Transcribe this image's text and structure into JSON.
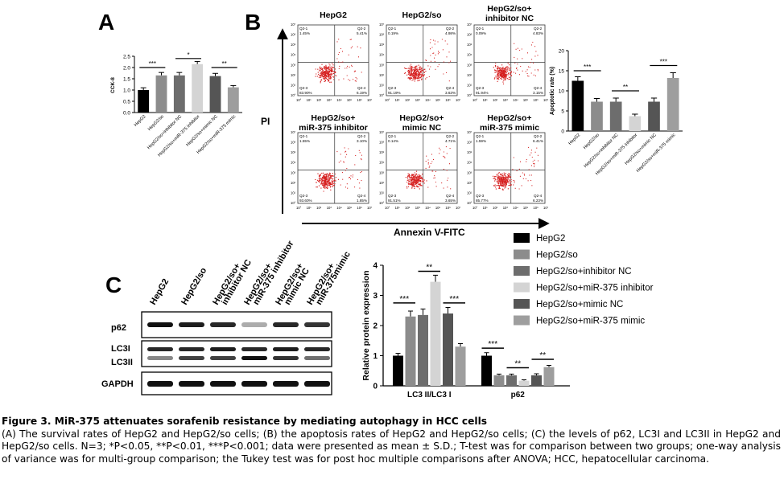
{
  "panelA": {
    "letter": "A",
    "ylabel": "CCK-8",
    "yticks": [
      "0.0",
      "0.5",
      "1.0",
      "1.5",
      "2.0",
      "2.5"
    ],
    "categories": [
      "HepG2",
      "HepG2/so",
      "HepG2/so+inhibitor NC",
      "HepG2/so+miR-375 inhibitor",
      "HepG2/so+mimic NC",
      "HepG2/so+miR-375 mimic"
    ],
    "sig": [
      "***",
      "*",
      "**"
    ]
  },
  "panelB": {
    "letter": "B",
    "yaxis_label": "PI",
    "xaxis_label": "Annexin V-FITC",
    "flow_plots": [
      {
        "title": "HepG2",
        "q1": "Q2-1",
        "q1v": "1.45%",
        "q2": "Q2-2",
        "q2v": "5.41%",
        "q3": "Q2-3",
        "q3v": "83.90%",
        "q4": "Q2-4",
        "q4v": "6.19%"
      },
      {
        "title": "HepG2/so",
        "q1": "Q2-1",
        "q1v": "0.19%",
        "q2": "Q2-2",
        "q2v": "4.98%",
        "q3": "Q2-3",
        "q3v": "91.19%",
        "q4": "Q2-4",
        "q4v": "3.63%"
      },
      {
        "title": "HepG2/so+ inhibitor NC",
        "q1": "Q2-1",
        "q1v": "0.09%",
        "q2": "Q2-2",
        "q2v": "4.83%",
        "q3": "Q2-3",
        "q3v": "91.94%",
        "q4": "Q2-4",
        "q4v": "3.15%"
      },
      {
        "title": "HepG2/so+ miR-375 inhibitor",
        "q1": "Q2-1",
        "q1v": "1.55%",
        "q2": "Q2-2",
        "q2v": "3.10%",
        "q3": "Q2-3",
        "q3v": "93.60%",
        "q4": "Q2-4",
        "q4v": "1.85%"
      },
      {
        "title": "HepG2/so+ mimic NC",
        "q1": "Q2-1",
        "q1v": "0.14%",
        "q2": "Q2-2",
        "q2v": "4.71%",
        "q3": "Q2-3",
        "q3v": "91.51%",
        "q4": "Q2-4",
        "q4v": "3.65%"
      },
      {
        "title": "HepG2/so+ miR-375 mimic",
        "q1": "Q2-1",
        "q1v": "1.59%",
        "q2": "Q2-2",
        "q2v": "6.41%",
        "q3": "Q2-3",
        "q3v": "85.77%",
        "q4": "Q2-4",
        "q4v": "6.23%"
      }
    ],
    "tick_labels": [
      "10°",
      "10¹",
      "10²",
      "10³",
      "10⁴",
      "10⁵",
      "10⁶",
      "10⁷"
    ],
    "bar_ylabel": "Apoptotic rate (%)",
    "bar_yticks": [
      "0",
      "5",
      "10",
      "15",
      "20"
    ],
    "bar_categories": [
      "HepG2",
      "HepG2/so",
      "HepG2/so+inhibitor NC",
      "HepG2/so+miR-375 inhibitor",
      "HepG2/so+mimic NC",
      "HepG2/so+miR-375 mimic"
    ],
    "sig": [
      "***",
      "**",
      "***"
    ]
  },
  "panelC": {
    "letter": "C",
    "lanes": [
      "HepG2",
      "HepG2/so",
      "HepG2/so+ inhibitor NC",
      "HepG2/so+ miR-375 inhibitor",
      "HepG2/so+ mimic NC",
      "HepG2/so+ miR-375mimic"
    ],
    "blot_labels": [
      "p62",
      "LC3I",
      "LC3II",
      "GAPDH"
    ],
    "ylabel": "Relative protein expression",
    "yticks": [
      "0",
      "1",
      "2",
      "3",
      "4"
    ],
    "groups": [
      "LC3 II/LC3 I",
      "p62"
    ],
    "legend": [
      "HepG2",
      "HepG2/so",
      "HepG2/so+inhibitor NC",
      "HepG2/so+miR-375 inhibitor",
      "HepG2/so+mimic NC",
      "HepG2/so+miR-375 mimic"
    ],
    "sig_lc3": [
      "***",
      "**",
      "***"
    ],
    "sig_p62": [
      "***",
      "**",
      "**"
    ]
  },
  "colors": {
    "HepG2": "#000000",
    "HepG2/so": "#8c8c8c",
    "HepG2/so+inhibitor NC": "#6d6d6d",
    "HepG2/so+miR-375 inhibitor": "#d4d4d4",
    "HepG2/so+mimic NC": "#555555",
    "HepG2/so+miR-375 mimic": "#9e9e9e",
    "flow_dots": "#d62020"
  },
  "chart_data": [
    {
      "type": "bar",
      "panel": "A",
      "categories": [
        "HepG2",
        "HepG2/so",
        "HepG2/so+inhibitor NC",
        "HepG2/so+miR-375 inhibitor",
        "HepG2/so+mimic NC",
        "HepG2/so+miR-375 mimic"
      ],
      "values": [
        1.0,
        1.65,
        1.65,
        2.15,
        1.62,
        1.12
      ],
      "errors": [
        0.1,
        0.13,
        0.13,
        0.12,
        0.12,
        0.08
      ],
      "ylabel": "CCK-8",
      "ylim": [
        0,
        2.5
      ]
    },
    {
      "type": "bar",
      "panel": "B",
      "categories": [
        "HepG2",
        "HepG2/so",
        "HepG2/so+inhibitor NC",
        "HepG2/so+miR-375 inhibitor",
        "HepG2/so+mimic NC",
        "HepG2/so+miR-375 mimic"
      ],
      "values": [
        12.5,
        7.3,
        7.3,
        3.7,
        7.3,
        13.2
      ],
      "errors": [
        1.0,
        0.8,
        0.9,
        0.5,
        0.9,
        1.3
      ],
      "ylabel": "Apoptotic rate (%)",
      "ylim": [
        0,
        20
      ]
    },
    {
      "type": "bar",
      "panel": "C",
      "categories": [
        "LC3 II/LC3 I",
        "p62"
      ],
      "series": [
        {
          "name": "HepG2",
          "values": [
            1.0,
            1.0
          ],
          "errors": [
            0.08,
            0.1
          ]
        },
        {
          "name": "HepG2/so",
          "values": [
            2.3,
            0.35
          ],
          "errors": [
            0.18,
            0.04
          ]
        },
        {
          "name": "HepG2/so+inhibitor NC",
          "values": [
            2.35,
            0.35
          ],
          "errors": [
            0.2,
            0.04
          ]
        },
        {
          "name": "HepG2/so+miR-375 inhibitor",
          "values": [
            3.45,
            0.17
          ],
          "errors": [
            0.22,
            0.03
          ]
        },
        {
          "name": "HepG2/so+mimic NC",
          "values": [
            2.4,
            0.35
          ],
          "errors": [
            0.2,
            0.05
          ]
        },
        {
          "name": "HepG2/so+miR-375 mimic",
          "values": [
            1.3,
            0.62
          ],
          "errors": [
            0.1,
            0.06
          ]
        }
      ],
      "ylabel": "Relative protein expression",
      "ylim": [
        0,
        4
      ]
    }
  ],
  "caption": {
    "title": "Figure 3. MiR-375 attenuates sorafenib resistance by mediating autophagy in HCC cells",
    "p1": "(A) The survival rates of HepG2 and HepG2/so cells; (B) the apoptosis rates of HepG2 and HepG2/so cells; (C) the levels of p62, LC3I and LC3II in HepG2 and HepG2/so cells. N=3; *P<0.05, **P<0.01, ***P<0.001; data were presented as mean ± S.D.; T-test was for comparison between two groups; one-way analysis of variance was for multi-group comparison; the Tukey test was for post hoc multiple comparisons after ANOVA; HCC, hepatocellular carcinoma."
  }
}
